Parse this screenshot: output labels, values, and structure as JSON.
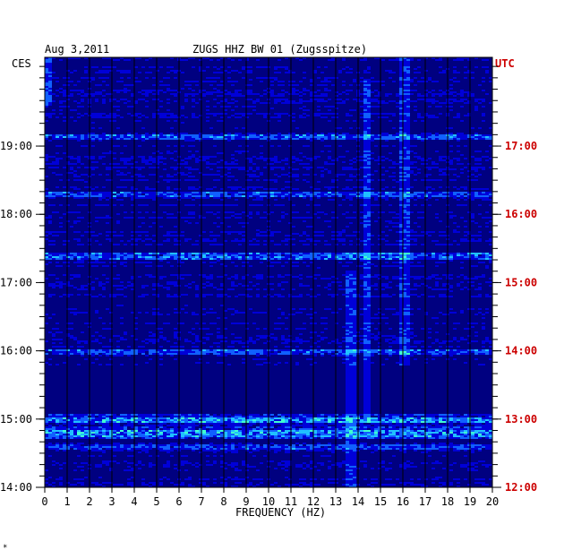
{
  "header": {
    "date": "Aug 3,2011",
    "station": "ZUGS HHZ BW 01 (Zugsspitze)",
    "left_timezone": "CES",
    "right_timezone": "UTC"
  },
  "footer_mark": "*",
  "colors": {
    "background": "#000080",
    "grid": "#000000",
    "utc_labels": "#cc0000",
    "palette": [
      "#000090",
      "#0000d8",
      "#1060ff",
      "#20c0ff",
      "#40ffd0",
      "#ffff40",
      "#ff2000"
    ]
  },
  "chart_data": {
    "type": "heatmap",
    "title": "ZUGS HHZ BW 01 (Zugsspitze)",
    "xlabel": "FREQUENCY (HZ)",
    "ylabel": "",
    "x_ticks": [
      "0",
      "1",
      "2",
      "3",
      "4",
      "5",
      "6",
      "7",
      "8",
      "9",
      "10",
      "11",
      "12",
      "13",
      "14",
      "15",
      "16",
      "17",
      "18",
      "19",
      "20"
    ],
    "xlim": [
      0,
      20
    ],
    "y_ticks_left": [
      "14:00",
      "15:00",
      "16:00",
      "17:00",
      "18:00",
      "19:00"
    ],
    "y_ticks_right": [
      "12:00",
      "13:00",
      "14:00",
      "15:00",
      "16:00",
      "17:00"
    ],
    "ylim_hours_local": [
      14.0,
      20.3
    ],
    "grid": true,
    "features": [
      {
        "freq_hz": 13.6,
        "from_local": 14.0,
        "to_local": 17.2
      },
      {
        "freq_hz": 14.3,
        "from_local": 15.0,
        "to_local": 20.0
      },
      {
        "freq_hz": 16.0,
        "from_local": 15.8,
        "to_local": 20.3
      }
    ],
    "strong_rows_local": [
      15.0,
      14.8,
      14.6,
      16.0,
      17.4,
      18.3,
      19.15
    ]
  }
}
